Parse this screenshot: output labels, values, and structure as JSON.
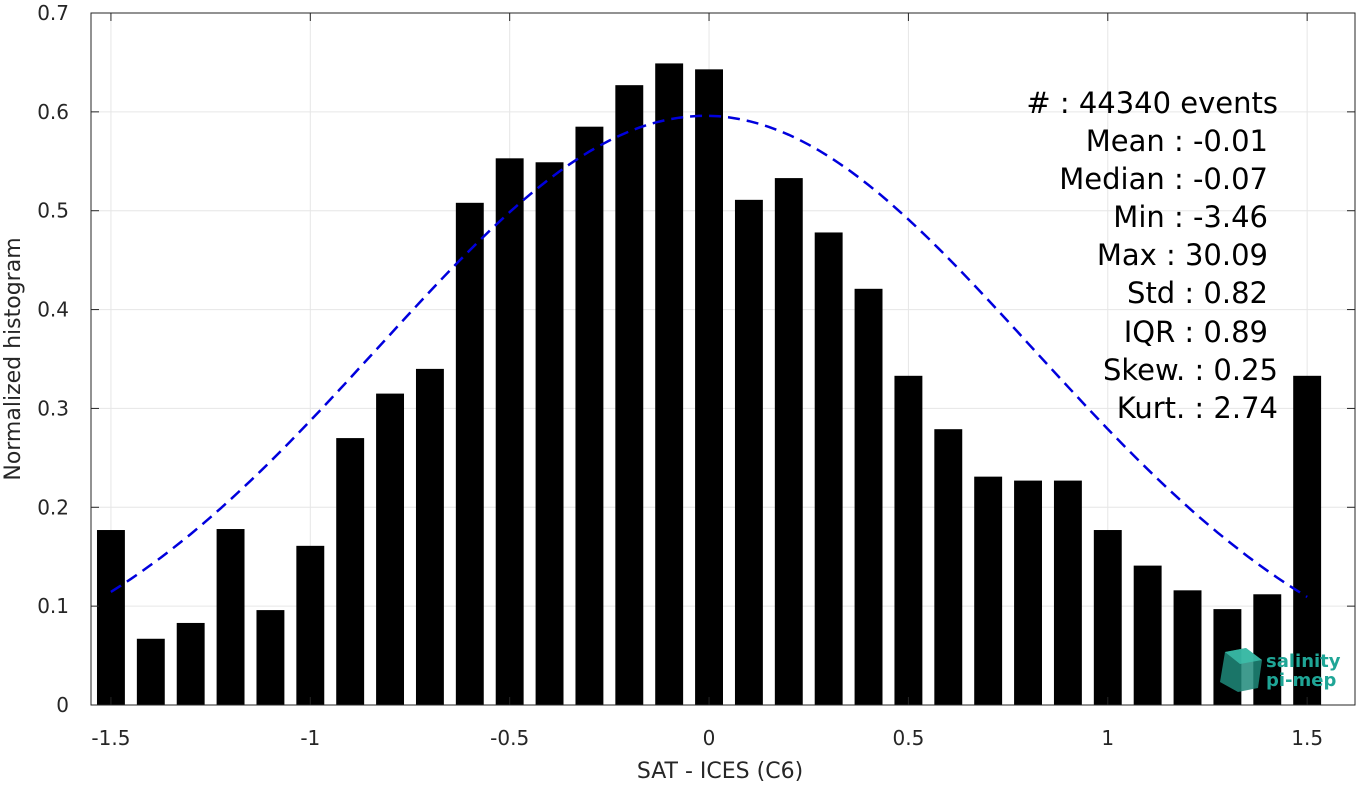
{
  "chart_data": {
    "type": "bar",
    "xlabel": "SAT - ICES (C6)",
    "ylabel": "Normalized histogram",
    "xlim": [
      -1.55,
      1.62
    ],
    "ylim": [
      0,
      0.7
    ],
    "xticks": [
      -1.5,
      -1,
      -0.5,
      0,
      0.5,
      1,
      1.5
    ],
    "xtick_labels": [
      "-1.5",
      "-1",
      "-0.5",
      "0",
      "0.5",
      "1",
      "1.5"
    ],
    "yticks": [
      0,
      0.1,
      0.2,
      0.3,
      0.4,
      0.5,
      0.6,
      0.7
    ],
    "ytick_labels": [
      "0",
      "0.1",
      "0.2",
      "0.3",
      "0.4",
      "0.5",
      "0.6",
      "0.7"
    ],
    "grid": true,
    "bar_color": "#000000",
    "bar_width": 0.07,
    "x": [
      -1.5,
      -1.4,
      -1.3,
      -1.2,
      -1.1,
      -1.0,
      -0.9,
      -0.8,
      -0.7,
      -0.6,
      -0.5,
      -0.4,
      -0.3,
      -0.2,
      -0.1,
      0.0,
      0.1,
      0.2,
      0.3,
      0.4,
      0.5,
      0.6,
      0.7,
      0.8,
      0.9,
      1.0,
      1.1,
      1.2,
      1.3,
      1.4,
      1.5
    ],
    "values": [
      0.177,
      0.067,
      0.083,
      0.178,
      0.096,
      0.161,
      0.27,
      0.315,
      0.34,
      0.508,
      0.553,
      0.549,
      0.585,
      0.627,
      0.649,
      0.643,
      0.511,
      0.533,
      0.478,
      0.421,
      0.333,
      0.279,
      0.231,
      0.227,
      0.227,
      0.177,
      0.141,
      0.116,
      0.097,
      0.112,
      0.333
    ],
    "fit": {
      "type": "line",
      "style": "dashed",
      "color": "#0000dd",
      "mean": -0.01,
      "std": 0.82,
      "x_range": [
        -1.5,
        1.5
      ]
    },
    "stats": [
      "#  : 44340 events",
      "Mean : -0.01",
      "Median : -0.07",
      "Min : -3.46",
      "Max : 30.09",
      "Std : 0.82",
      "IQR : 0.89",
      "Skew. : 0.25",
      "Kurt. : 2.74"
    ]
  },
  "logo": {
    "line1": "salinity",
    "line2": "pi-mep",
    "color": "#1fa596"
  }
}
